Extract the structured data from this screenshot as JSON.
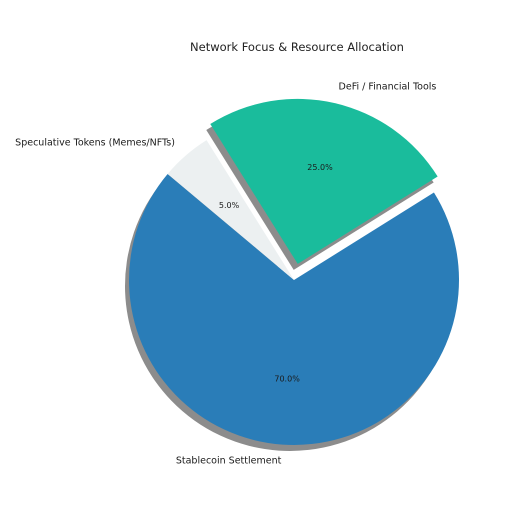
{
  "chart_data": {
    "type": "pie",
    "title": "Network Focus & Resource Allocation",
    "slices": [
      {
        "label": "Stablecoin Settlement",
        "value": 70.0,
        "pct_label": "70.0%",
        "color": "#2a7db8"
      },
      {
        "label": "DeFi / Financial Tools",
        "value": 25.0,
        "pct_label": "25.0%",
        "color": "#1abc9c"
      },
      {
        "label": "Speculative Tokens (Memes/NFTs)",
        "value": 5.0,
        "pct_label": "5.0%",
        "color": "#ecf0f1"
      }
    ],
    "start_angle_deg": 140,
    "explode": [
      0,
      0.1,
      0
    ],
    "shadow": true,
    "shadow_color": "#8c8c8c"
  }
}
